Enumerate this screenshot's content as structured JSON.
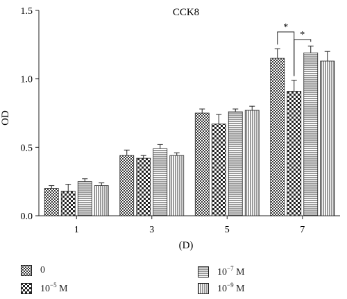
{
  "chart_data": {
    "type": "bar",
    "title": "CCK8",
    "xlabel": "(D)",
    "ylabel": "OD",
    "ylim": [
      0,
      1.5
    ],
    "yticks": [
      "0.0",
      "0.5",
      "1.0",
      "1.5"
    ],
    "categories": [
      "1",
      "3",
      "5",
      "7"
    ],
    "series": [
      {
        "name": "0",
        "pattern": "dense-check",
        "values": [
          0.2,
          0.44,
          0.75,
          1.15
        ],
        "errors": [
          0.02,
          0.04,
          0.03,
          0.07
        ]
      },
      {
        "name": "10⁻⁵ M",
        "pattern": "check",
        "values": [
          0.18,
          0.42,
          0.67,
          0.91
        ],
        "errors": [
          0.05,
          0.02,
          0.07,
          0.08
        ]
      },
      {
        "name": "10⁻⁷ M",
        "pattern": "horizontal-lines",
        "values": [
          0.25,
          0.49,
          0.76,
          1.19
        ],
        "errors": [
          0.02,
          0.03,
          0.02,
          0.05
        ]
      },
      {
        "name": "10⁻⁹ M",
        "pattern": "vertical-lines",
        "values": [
          0.22,
          0.44,
          0.77,
          1.13
        ],
        "errors": [
          0.02,
          0.02,
          0.03,
          0.07
        ]
      }
    ],
    "annotations": [
      "*",
      "*"
    ],
    "legend": "bottom, two columns",
    "grid": false
  },
  "legend_items": {
    "s0": {
      "base": "0",
      "exp": "",
      "unit": ""
    },
    "s1": {
      "base": "10",
      "exp": "−5",
      "unit": " M"
    },
    "s2": {
      "base": "10",
      "exp": "−7",
      "unit": " M"
    },
    "s3": {
      "base": "10",
      "exp": "−9",
      "unit": " M"
    }
  }
}
